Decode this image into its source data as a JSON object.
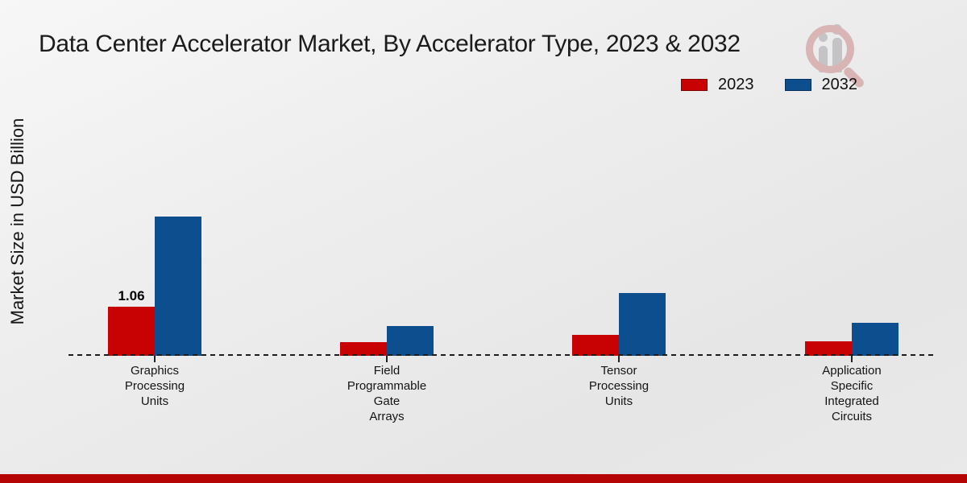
{
  "chart_data": {
    "type": "bar",
    "title": "Data Center Accelerator Market, By Accelerator Type, 2023 & 2032",
    "xlabel": "",
    "ylabel": "Market Size in USD Billion",
    "categories": [
      "Graphics Processing Units",
      "Field Programmable Gate Arrays",
      "Tensor Processing Units",
      "Application Specific Integrated Circuits"
    ],
    "category_label_lines": [
      [
        "Graphics",
        "Processing",
        "Units"
      ],
      [
        "Field",
        "Programmable",
        "Gate",
        "Arrays"
      ],
      [
        "Tensor",
        "Processing",
        "Units"
      ],
      [
        "Application",
        "Specific",
        "Integrated",
        "Circuits"
      ]
    ],
    "series": [
      {
        "name": "2023",
        "color": "#c80202",
        "values": [
          1.06,
          0.29,
          0.45,
          0.31
        ]
      },
      {
        "name": "2032",
        "color": "#0d4e8f",
        "values": [
          3.0,
          0.65,
          1.35,
          0.72
        ]
      }
    ],
    "data_labels": [
      {
        "series": "2023",
        "category_index": 0,
        "text": "1.06"
      }
    ],
    "ylim": [
      0,
      3.5
    ],
    "grid": false,
    "legend_position": "top-right",
    "zero_line_style": "dashed",
    "units": "USD Billion"
  },
  "watermark": {
    "name": "magnifier-bar-chart-logo"
  },
  "colors": {
    "footer_bar": "#b50505",
    "background": "#ececec"
  }
}
